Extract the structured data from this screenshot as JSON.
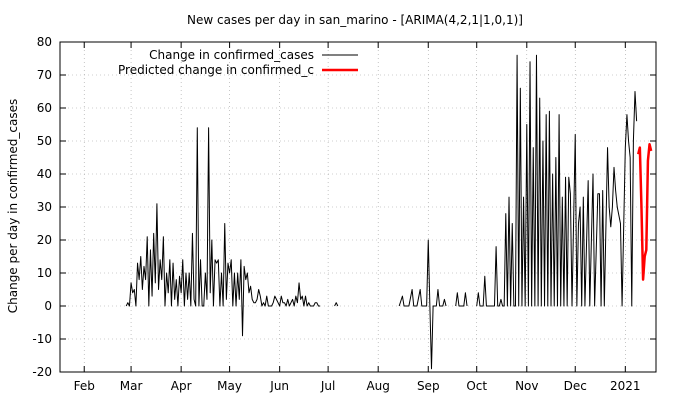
{
  "chart_data": {
    "type": "line",
    "title": "New cases per day in san_marino -  [ARIMA(4,2,1|1,0,1)]",
    "xlabel": "",
    "ylabel": "Change per day in confirmed_cases",
    "ylim": [
      -20,
      80
    ],
    "yticks": [
      -20,
      -10,
      0,
      10,
      20,
      30,
      40,
      50,
      60,
      70,
      80
    ],
    "xlim": [
      "2020-01-17",
      "2021-01-20"
    ],
    "xticks": [
      {
        "label": "Feb",
        "date": "2020-02-01"
      },
      {
        "label": "Mar",
        "date": "2020-03-01"
      },
      {
        "label": "Apr",
        "date": "2020-04-01"
      },
      {
        "label": "May",
        "date": "2020-05-01"
      },
      {
        "label": "Jun",
        "date": "2020-06-01"
      },
      {
        "label": "Jul",
        "date": "2020-07-01"
      },
      {
        "label": "Aug",
        "date": "2020-08-01"
      },
      {
        "label": "Sep",
        "date": "2020-09-01"
      },
      {
        "label": "Oct",
        "date": "2020-10-01"
      },
      {
        "label": "Nov",
        "date": "2020-11-01"
      },
      {
        "label": "Dec",
        "date": "2020-12-01"
      },
      {
        "label": "2021",
        "date": "2021-01-01"
      }
    ],
    "grid": true,
    "legend_position": "top-left",
    "series": [
      {
        "name": "Change in confirmed_cases",
        "color": "#000000",
        "points": [
          [
            "2020-01-22",
            0
          ],
          [
            "2020-02-27",
            0
          ],
          [
            "2020-02-28",
            1
          ],
          [
            "2020-02-29",
            0
          ],
          [
            "2020-03-01",
            7
          ],
          [
            "2020-03-02",
            4
          ],
          [
            "2020-03-03",
            5
          ],
          [
            "2020-03-04",
            0
          ],
          [
            "2020-03-05",
            13
          ],
          [
            "2020-03-06",
            8
          ],
          [
            "2020-03-07",
            15
          ],
          [
            "2020-03-08",
            5
          ],
          [
            "2020-03-09",
            12
          ],
          [
            "2020-03-10",
            8
          ],
          [
            "2020-03-11",
            21
          ],
          [
            "2020-03-12",
            0
          ],
          [
            "2020-03-13",
            17
          ],
          [
            "2020-03-14",
            3
          ],
          [
            "2020-03-15",
            22
          ],
          [
            "2020-03-16",
            7
          ],
          [
            "2020-03-17",
            31
          ],
          [
            "2020-03-18",
            5
          ],
          [
            "2020-03-19",
            14
          ],
          [
            "2020-03-20",
            8
          ],
          [
            "2020-03-21",
            21
          ],
          [
            "2020-03-22",
            0
          ],
          [
            "2020-03-23",
            10
          ],
          [
            "2020-03-24",
            4
          ],
          [
            "2020-03-25",
            14
          ],
          [
            "2020-03-26",
            0
          ],
          [
            "2020-03-27",
            13
          ],
          [
            "2020-03-28",
            2
          ],
          [
            "2020-03-29",
            8
          ],
          [
            "2020-03-30",
            0
          ],
          [
            "2020-03-31",
            9
          ],
          [
            "2020-04-01",
            4
          ],
          [
            "2020-04-02",
            14
          ],
          [
            "2020-04-03",
            0
          ],
          [
            "2020-04-04",
            10
          ],
          [
            "2020-04-05",
            2
          ],
          [
            "2020-04-06",
            10
          ],
          [
            "2020-04-07",
            0
          ],
          [
            "2020-04-08",
            22
          ],
          [
            "2020-04-09",
            2
          ],
          [
            "2020-04-10",
            0
          ],
          [
            "2020-04-11",
            54
          ],
          [
            "2020-04-12",
            0
          ],
          [
            "2020-04-13",
            14
          ],
          [
            "2020-04-14",
            0
          ],
          [
            "2020-04-15",
            0
          ],
          [
            "2020-04-16",
            10
          ],
          [
            "2020-04-17",
            2
          ],
          [
            "2020-04-18",
            54
          ],
          [
            "2020-04-19",
            4
          ],
          [
            "2020-04-20",
            20
          ],
          [
            "2020-04-21",
            0
          ],
          [
            "2020-04-22",
            14
          ],
          [
            "2020-04-23",
            13
          ],
          [
            "2020-04-24",
            14
          ],
          [
            "2020-04-25",
            0
          ],
          [
            "2020-04-26",
            10
          ],
          [
            "2020-04-27",
            0
          ],
          [
            "2020-04-28",
            25
          ],
          [
            "2020-04-29",
            2
          ],
          [
            "2020-04-30",
            13
          ],
          [
            "2020-05-01",
            10
          ],
          [
            "2020-05-02",
            14
          ],
          [
            "2020-05-03",
            0
          ],
          [
            "2020-05-04",
            10
          ],
          [
            "2020-05-05",
            0
          ],
          [
            "2020-05-06",
            10
          ],
          [
            "2020-05-07",
            2
          ],
          [
            "2020-05-08",
            14
          ],
          [
            "2020-05-09",
            -9
          ],
          [
            "2020-05-10",
            12
          ],
          [
            "2020-05-11",
            8
          ],
          [
            "2020-05-12",
            10
          ],
          [
            "2020-05-13",
            4
          ],
          [
            "2020-05-14",
            6
          ],
          [
            "2020-05-15",
            2
          ],
          [
            "2020-05-16",
            1
          ],
          [
            "2020-05-17",
            1
          ],
          [
            "2020-05-18",
            2
          ],
          [
            "2020-05-19",
            5
          ],
          [
            "2020-05-20",
            3
          ],
          [
            "2020-05-21",
            0
          ],
          [
            "2020-05-22",
            1
          ],
          [
            "2020-05-23",
            0
          ],
          [
            "2020-05-24",
            3
          ],
          [
            "2020-05-25",
            0
          ],
          [
            "2020-05-26",
            0
          ],
          [
            "2020-05-27",
            0
          ],
          [
            "2020-05-28",
            1
          ],
          [
            "2020-05-29",
            3
          ],
          [
            "2020-05-30",
            2
          ],
          [
            "2020-05-31",
            1
          ],
          [
            "2020-06-01",
            0
          ],
          [
            "2020-06-02",
            3
          ],
          [
            "2020-06-03",
            1
          ],
          [
            "2020-06-04",
            1
          ],
          [
            "2020-06-05",
            0
          ],
          [
            "2020-06-06",
            2
          ],
          [
            "2020-06-07",
            0
          ],
          [
            "2020-06-08",
            1
          ],
          [
            "2020-06-09",
            2
          ],
          [
            "2020-06-10",
            0
          ],
          [
            "2020-06-11",
            3
          ],
          [
            "2020-06-12",
            1
          ],
          [
            "2020-06-13",
            7
          ],
          [
            "2020-06-14",
            2
          ],
          [
            "2020-06-15",
            3
          ],
          [
            "2020-06-16",
            0
          ],
          [
            "2020-06-17",
            3
          ],
          [
            "2020-06-18",
            0
          ],
          [
            "2020-06-19",
            1
          ],
          [
            "2020-06-20",
            0
          ],
          [
            "2020-06-21",
            0
          ],
          [
            "2020-06-22",
            0
          ],
          [
            "2020-06-23",
            1
          ],
          [
            "2020-06-24",
            1
          ],
          [
            "2020-06-25",
            0
          ],
          [
            "2020-06-26",
            0
          ],
          [
            "2020-07-05",
            0
          ],
          [
            "2020-07-06",
            1
          ],
          [
            "2020-07-07",
            0
          ],
          [
            "2020-08-14",
            0
          ],
          [
            "2020-08-16",
            3
          ],
          [
            "2020-08-17",
            0
          ],
          [
            "2020-08-20",
            0
          ],
          [
            "2020-08-22",
            5
          ],
          [
            "2020-08-23",
            0
          ],
          [
            "2020-08-25",
            0
          ],
          [
            "2020-08-27",
            5
          ],
          [
            "2020-08-28",
            0
          ],
          [
            "2020-08-31",
            0
          ],
          [
            "2020-09-01",
            20
          ],
          [
            "2020-09-02",
            0
          ],
          [
            "2020-09-03",
            -19
          ],
          [
            "2020-09-04",
            0
          ],
          [
            "2020-09-06",
            0
          ],
          [
            "2020-09-07",
            5
          ],
          [
            "2020-09-08",
            0
          ],
          [
            "2020-09-10",
            0
          ],
          [
            "2020-09-11",
            2
          ],
          [
            "2020-09-12",
            0
          ],
          [
            "2020-09-18",
            0
          ],
          [
            "2020-09-19",
            4
          ],
          [
            "2020-09-20",
            0
          ],
          [
            "2020-09-23",
            0
          ],
          [
            "2020-09-24",
            4
          ],
          [
            "2020-09-25",
            0
          ],
          [
            "2020-10-01",
            0
          ],
          [
            "2020-10-02",
            4
          ],
          [
            "2020-10-03",
            0
          ],
          [
            "2020-10-05",
            0
          ],
          [
            "2020-10-06",
            9
          ],
          [
            "2020-10-07",
            0
          ],
          [
            "2020-10-10",
            0
          ],
          [
            "2020-10-12",
            0
          ],
          [
            "2020-10-13",
            18
          ],
          [
            "2020-10-14",
            0
          ],
          [
            "2020-10-15",
            0
          ],
          [
            "2020-10-16",
            2
          ],
          [
            "2020-10-17",
            0
          ],
          [
            "2020-10-18",
            0
          ],
          [
            "2020-10-19",
            28
          ],
          [
            "2020-10-20",
            0
          ],
          [
            "2020-10-21",
            33
          ],
          [
            "2020-10-22",
            0
          ],
          [
            "2020-10-23",
            25
          ],
          [
            "2020-10-24",
            0
          ],
          [
            "2020-10-25",
            0
          ],
          [
            "2020-10-26",
            76
          ],
          [
            "2020-10-27",
            0
          ],
          [
            "2020-10-28",
            66
          ],
          [
            "2020-10-29",
            0
          ],
          [
            "2020-10-30",
            33
          ],
          [
            "2020-10-31",
            0
          ],
          [
            "2020-11-01",
            55
          ],
          [
            "2020-11-02",
            0
          ],
          [
            "2020-11-03",
            74
          ],
          [
            "2020-11-04",
            0
          ],
          [
            "2020-11-05",
            48
          ],
          [
            "2020-11-06",
            0
          ],
          [
            "2020-11-07",
            76
          ],
          [
            "2020-11-08",
            0
          ],
          [
            "2020-11-09",
            63
          ],
          [
            "2020-11-10",
            0
          ],
          [
            "2020-11-11",
            50
          ],
          [
            "2020-11-12",
            0
          ],
          [
            "2020-11-13",
            58
          ],
          [
            "2020-11-14",
            0
          ],
          [
            "2020-11-15",
            59
          ],
          [
            "2020-11-16",
            0
          ],
          [
            "2020-11-17",
            40
          ],
          [
            "2020-11-18",
            0
          ],
          [
            "2020-11-19",
            45
          ],
          [
            "2020-11-20",
            0
          ],
          [
            "2020-11-21",
            58
          ],
          [
            "2020-11-22",
            0
          ],
          [
            "2020-11-23",
            33
          ],
          [
            "2020-11-24",
            0
          ],
          [
            "2020-11-25",
            39
          ],
          [
            "2020-11-26",
            0
          ],
          [
            "2020-11-27",
            39
          ],
          [
            "2020-11-28",
            34
          ],
          [
            "2020-11-29",
            0
          ],
          [
            "2020-12-01",
            52
          ],
          [
            "2020-12-02",
            0
          ],
          [
            "2020-12-03",
            25
          ],
          [
            "2020-12-04",
            30
          ],
          [
            "2020-12-05",
            0
          ],
          [
            "2020-12-06",
            33
          ],
          [
            "2020-12-07",
            0
          ],
          [
            "2020-12-09",
            38
          ],
          [
            "2020-12-10",
            0
          ],
          [
            "2020-12-12",
            40
          ],
          [
            "2020-12-13",
            0
          ],
          [
            "2020-12-15",
            34
          ],
          [
            "2020-12-16",
            34
          ],
          [
            "2020-12-17",
            0
          ],
          [
            "2020-12-18",
            35
          ],
          [
            "2020-12-19",
            0
          ],
          [
            "2020-12-21",
            48
          ],
          [
            "2020-12-22",
            30
          ],
          [
            "2020-12-23",
            24
          ],
          [
            "2020-12-24",
            30
          ],
          [
            "2020-12-25",
            42
          ],
          [
            "2020-12-26",
            35
          ],
          [
            "2020-12-27",
            30
          ],
          [
            "2020-12-29",
            25
          ],
          [
            "2020-12-30",
            0
          ],
          [
            "2021-01-01",
            48
          ],
          [
            "2021-01-02",
            58
          ],
          [
            "2021-01-03",
            50
          ],
          [
            "2021-01-04",
            45
          ],
          [
            "2021-01-05",
            0
          ],
          [
            "2021-01-06",
            50
          ],
          [
            "2021-01-07",
            65
          ],
          [
            "2021-01-08",
            56
          ]
        ]
      },
      {
        "name": "Predicted change in confirmed_c",
        "color": "#ff0000",
        "points": [
          [
            "2021-01-09",
            46
          ],
          [
            "2021-01-10",
            48
          ],
          [
            "2021-01-11",
            30
          ],
          [
            "2021-01-12",
            8
          ],
          [
            "2021-01-13",
            15
          ],
          [
            "2021-01-14",
            17
          ],
          [
            "2021-01-15",
            44
          ],
          [
            "2021-01-16",
            49
          ],
          [
            "2021-01-17",
            47
          ]
        ]
      }
    ]
  }
}
